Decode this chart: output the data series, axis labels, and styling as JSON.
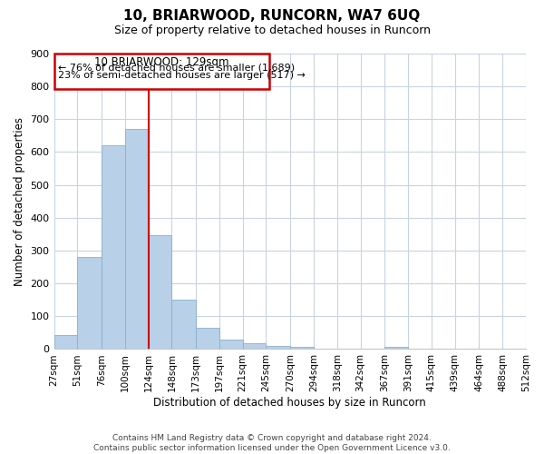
{
  "title": "10, BRIARWOOD, RUNCORN, WA7 6UQ",
  "subtitle": "Size of property relative to detached houses in Runcorn",
  "xlabel": "Distribution of detached houses by size in Runcorn",
  "ylabel": "Number of detached properties",
  "bar_color": "#b8d0e8",
  "vline_color": "#cc0000",
  "vline_x": 124,
  "bin_edges": [
    27,
    51,
    76,
    100,
    124,
    148,
    173,
    197,
    221,
    245,
    270,
    294,
    318,
    342,
    367,
    391,
    415,
    439,
    464,
    488,
    512
  ],
  "bar_heights": [
    44,
    280,
    620,
    670,
    348,
    150,
    65,
    30,
    18,
    10,
    8,
    0,
    0,
    0,
    8,
    0,
    0,
    0,
    0,
    0
  ],
  "annotation_title": "10 BRIARWOOD: 129sqm",
  "annotation_line1": "← 76% of detached houses are smaller (1,689)",
  "annotation_line2": "23% of semi-detached houses are larger (517) →",
  "ylim": [
    0,
    900
  ],
  "yticks": [
    0,
    100,
    200,
    300,
    400,
    500,
    600,
    700,
    800,
    900
  ],
  "tick_labels": [
    "27sqm",
    "51sqm",
    "76sqm",
    "100sqm",
    "124sqm",
    "148sqm",
    "173sqm",
    "197sqm",
    "221sqm",
    "245sqm",
    "270sqm",
    "294sqm",
    "318sqm",
    "342sqm",
    "367sqm",
    "391sqm",
    "415sqm",
    "439sqm",
    "464sqm",
    "488sqm",
    "512sqm"
  ],
  "footer1": "Contains HM Land Registry data © Crown copyright and database right 2024.",
  "footer2": "Contains public sector information licensed under the Open Government Licence v3.0.",
  "background_color": "#ffffff",
  "grid_color": "#c8d4e0"
}
